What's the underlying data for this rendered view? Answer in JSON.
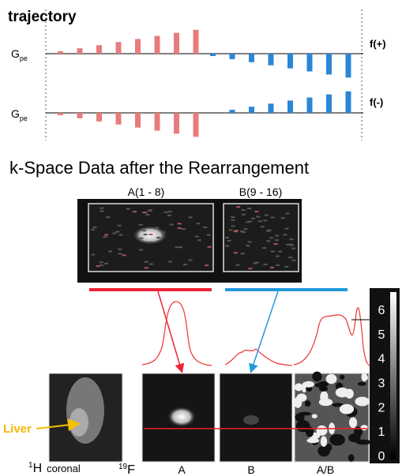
{
  "header": {
    "title": "trajectory"
  },
  "trajectory": {
    "row_plus": {
      "axis": {
        "main": "G",
        "sub": "pe"
      },
      "label": "f(+)"
    },
    "row_minus": {
      "axis": {
        "main": "G",
        "sub": "pe"
      },
      "label": "f(-)"
    }
  },
  "kspace": {
    "title": "k-Space Data after the Rearrangement",
    "panels": [
      "A(1 - 8)",
      "B(9 - 16)"
    ]
  },
  "colorbar": {
    "ticks": [
      6,
      5,
      4,
      3,
      2,
      1,
      0
    ]
  },
  "images": {
    "annotation": "Liver",
    "proton": {
      "sup": "1",
      "main": "H",
      "text": "coronal"
    },
    "fluorine": {
      "sup": "19",
      "main": "F"
    },
    "labels": [
      "A",
      "B",
      "A/B"
    ]
  }
}
